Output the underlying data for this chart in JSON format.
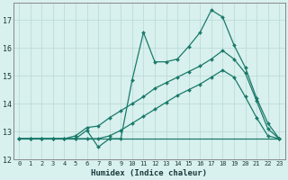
{
  "xlabel": "Humidex (Indice chaleur)",
  "background_color": "#d8f0ee",
  "grid_color": "#b8d8d4",
  "line_color": "#1a7a6a",
  "xlim": [
    -0.5,
    23.5
  ],
  "ylim": [
    12,
    17.6
  ],
  "yticks": [
    12,
    13,
    14,
    15,
    16,
    17
  ],
  "xticks": [
    0,
    1,
    2,
    3,
    4,
    5,
    6,
    7,
    8,
    9,
    10,
    11,
    12,
    13,
    14,
    15,
    16,
    17,
    18,
    19,
    20,
    21,
    22,
    23
  ],
  "line_flat_x": [
    0,
    1,
    2,
    3,
    4,
    5,
    6,
    7,
    8,
    9,
    10,
    11,
    12,
    13,
    14,
    15,
    16,
    17,
    18,
    19,
    20,
    21,
    22,
    23
  ],
  "line_flat_y": [
    12.75,
    12.75,
    12.75,
    12.75,
    12.75,
    12.75,
    12.75,
    12.75,
    12.75,
    12.75,
    12.75,
    12.75,
    12.75,
    12.75,
    12.75,
    12.75,
    12.75,
    12.75,
    12.75,
    12.75,
    12.75,
    12.75,
    12.75,
    12.75
  ],
  "line_jagged_x": [
    0,
    1,
    2,
    3,
    4,
    5,
    6,
    7,
    8,
    9,
    10,
    11,
    12,
    13,
    14,
    15,
    16,
    17,
    18,
    19,
    20,
    21,
    22,
    23
  ],
  "line_jagged_y": [
    12.75,
    12.75,
    12.75,
    12.75,
    12.75,
    12.75,
    13.05,
    12.45,
    12.75,
    12.75,
    14.85,
    16.55,
    15.5,
    15.5,
    15.6,
    16.05,
    16.55,
    17.35,
    17.1,
    16.1,
    15.3,
    14.2,
    13.3,
    12.75
  ],
  "line_upper_x": [
    0,
    1,
    2,
    3,
    4,
    5,
    6,
    7,
    8,
    9,
    10,
    11,
    12,
    13,
    14,
    15,
    16,
    17,
    18,
    19,
    20,
    21,
    22,
    23
  ],
  "line_upper_y": [
    12.75,
    12.75,
    12.75,
    12.75,
    12.75,
    12.85,
    13.15,
    13.2,
    13.5,
    13.75,
    14.0,
    14.25,
    14.55,
    14.75,
    14.95,
    15.15,
    15.35,
    15.6,
    15.9,
    15.6,
    15.1,
    14.1,
    13.1,
    12.75
  ],
  "line_lower_x": [
    0,
    1,
    2,
    3,
    4,
    5,
    6,
    7,
    8,
    9,
    10,
    11,
    12,
    13,
    14,
    15,
    16,
    17,
    18,
    19,
    20,
    21,
    22,
    23
  ],
  "line_lower_y": [
    12.75,
    12.75,
    12.75,
    12.75,
    12.75,
    12.75,
    12.75,
    12.75,
    12.85,
    13.05,
    13.3,
    13.55,
    13.8,
    14.05,
    14.3,
    14.5,
    14.7,
    14.95,
    15.2,
    14.95,
    14.25,
    13.5,
    12.85,
    12.75
  ]
}
